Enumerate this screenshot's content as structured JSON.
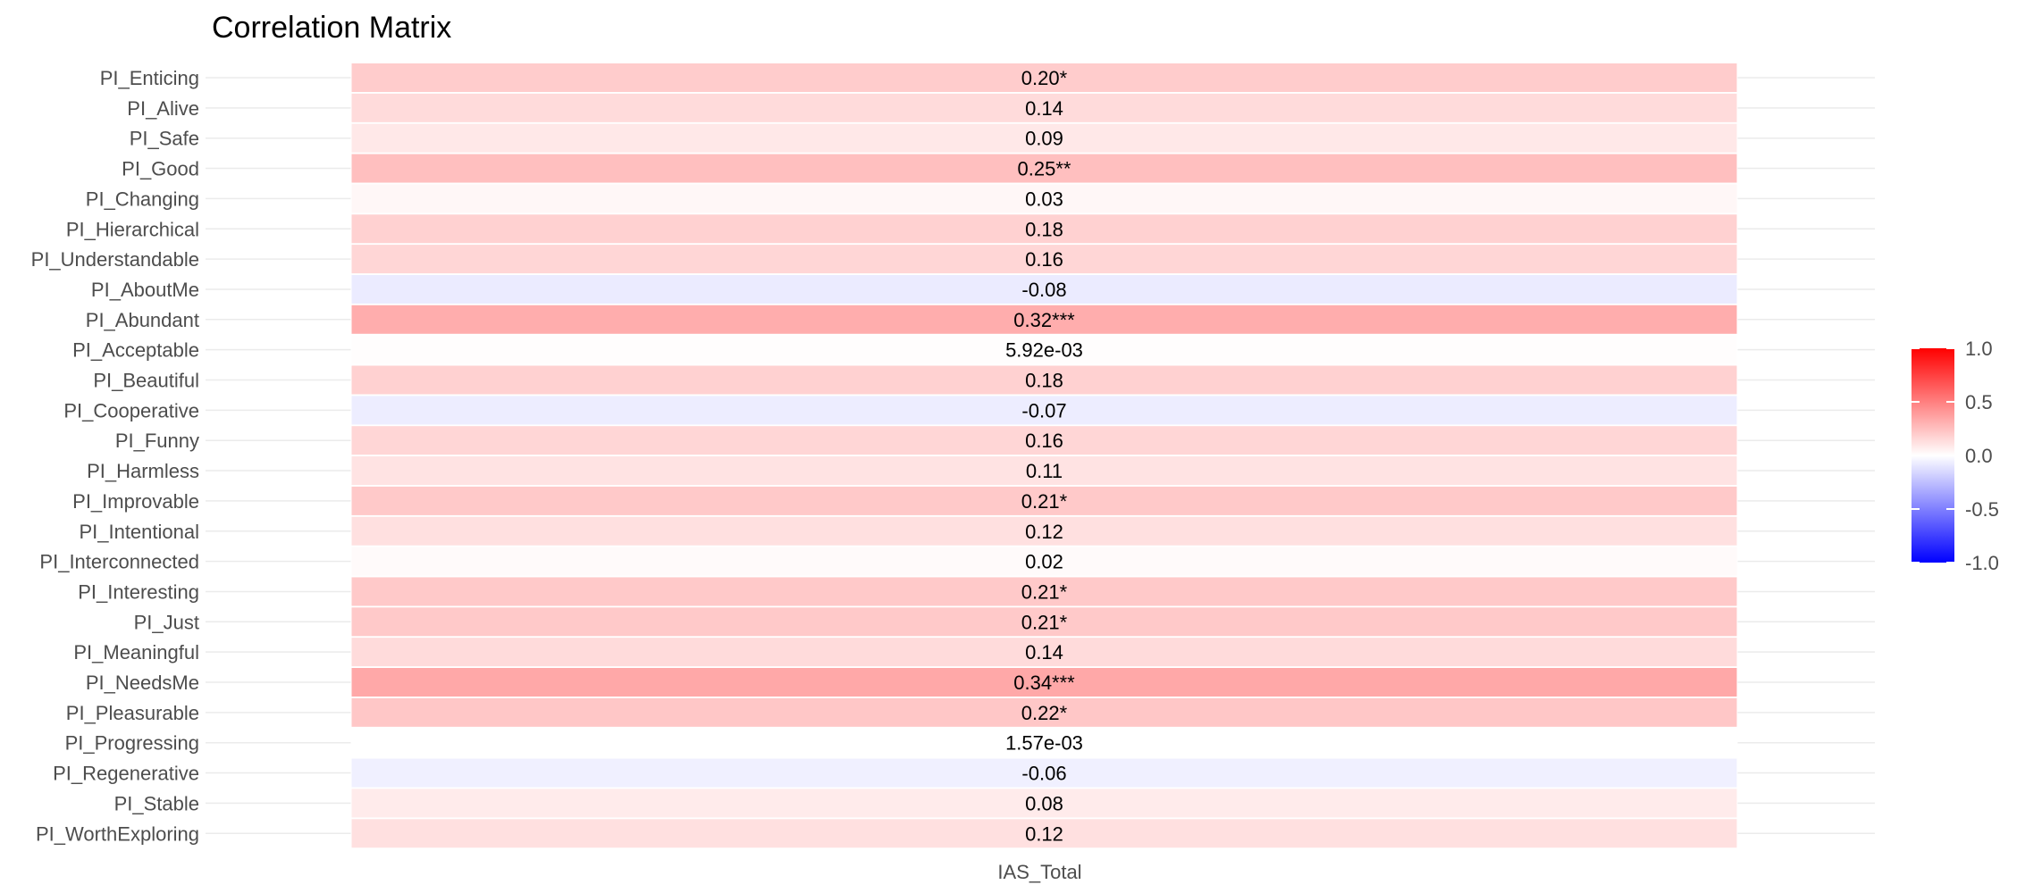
{
  "chart_data": {
    "type": "heatmap",
    "title": "Correlation Matrix",
    "x_categories": [
      "IAS_Total"
    ],
    "y_categories": [
      "PI_Enticing",
      "PI_Alive",
      "PI_Safe",
      "PI_Good",
      "PI_Changing",
      "PI_Hierarchical",
      "PI_Understandable",
      "PI_AboutMe",
      "PI_Abundant",
      "PI_Acceptable",
      "PI_Beautiful",
      "PI_Cooperative",
      "PI_Funny",
      "PI_Harmless",
      "PI_Improvable",
      "PI_Intentional",
      "PI_Interconnected",
      "PI_Interesting",
      "PI_Just",
      "PI_Meaningful",
      "PI_NeedsMe",
      "PI_Pleasurable",
      "PI_Progressing",
      "PI_Regenerative",
      "PI_Stable",
      "PI_WorthExploring"
    ],
    "values": [
      0.2,
      0.14,
      0.09,
      0.25,
      0.03,
      0.18,
      0.16,
      -0.08,
      0.32,
      0.00592,
      0.18,
      -0.07,
      0.16,
      0.11,
      0.21,
      0.12,
      0.02,
      0.21,
      0.21,
      0.14,
      0.34,
      0.22,
      0.00157,
      -0.06,
      0.08,
      0.12
    ],
    "labels": [
      "0.20*",
      "0.14",
      "0.09",
      "0.25**",
      "0.03",
      "0.18",
      "0.16",
      "-0.08",
      "0.32***",
      "5.92e-03",
      "0.18",
      "-0.07",
      "0.16",
      "0.11",
      "0.21*",
      "0.12",
      "0.02",
      "0.21*",
      "0.21*",
      "0.14",
      "0.34***",
      "0.22*",
      "1.57e-03",
      "-0.06",
      "0.08",
      "0.12"
    ],
    "color_scale": {
      "range": [
        -1,
        1
      ],
      "low": "#0000ff",
      "mid": "#ffffff",
      "high": "#ff0000",
      "ticks": [
        1.0,
        0.5,
        0.0,
        -0.5,
        -1.0
      ],
      "tick_labels": [
        "1.0",
        "0.5",
        "0.0",
        "-0.5",
        "-1.0"
      ]
    },
    "legend_position": "right",
    "grid": true
  }
}
